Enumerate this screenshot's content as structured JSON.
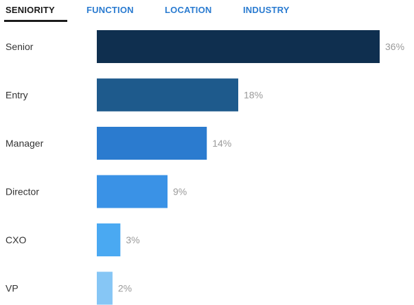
{
  "tabs": [
    {
      "label": "SENIORITY",
      "active": true
    },
    {
      "label": "FUNCTION",
      "active": false
    },
    {
      "label": "LOCATION",
      "active": false
    },
    {
      "label": "INDUSTRY",
      "active": false
    }
  ],
  "colors": {
    "active_tab": "#1a1a1a",
    "inactive_tab": "#2a7bd0",
    "value_label": "#9a9a9a"
  },
  "chart_data": {
    "type": "bar",
    "orientation": "horizontal",
    "categories": [
      "Senior",
      "Entry",
      "Manager",
      "Director",
      "CXO",
      "VP"
    ],
    "values": [
      36,
      18,
      14,
      9,
      3,
      2
    ],
    "value_labels": [
      "36%",
      "18%",
      "14%",
      "9%",
      "3%",
      "2%"
    ],
    "bar_colors": [
      "#0f2f4f",
      "#1e5a8c",
      "#2b7bcf",
      "#3a92e6",
      "#4aa9f2",
      "#86c6f5"
    ],
    "unit": "%",
    "grid": false,
    "legend": "none"
  }
}
